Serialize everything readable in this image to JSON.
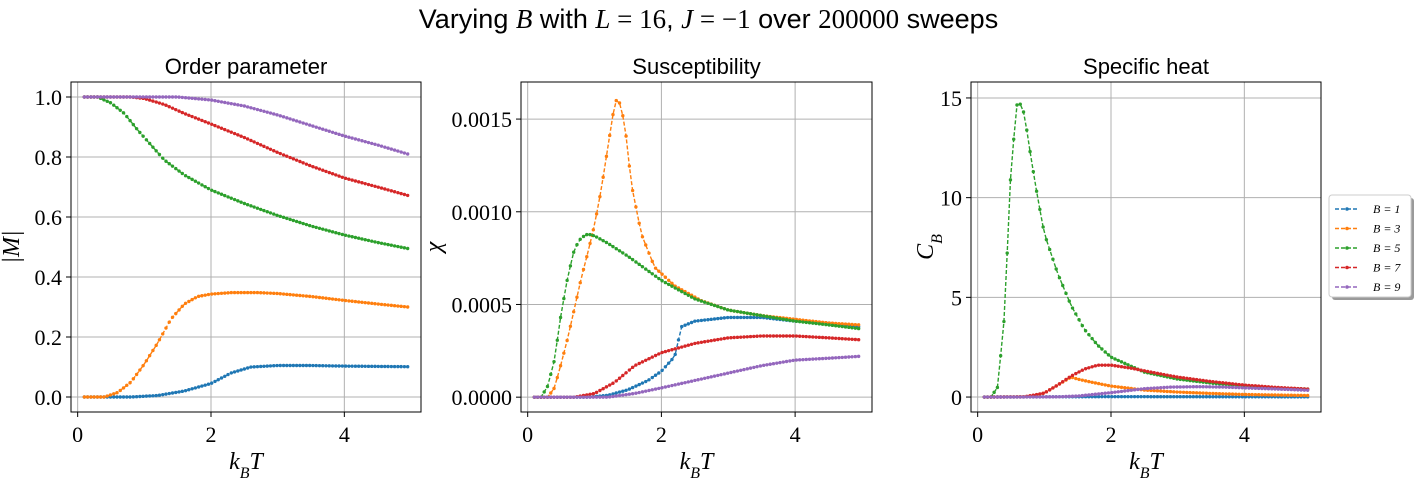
{
  "figure": {
    "suptitle": {
      "p1": "Varying ",
      "m1": "B",
      "p2": " with ",
      "m2": "L",
      "p3": " = ",
      "n1": "16",
      "p4": ", ",
      "m3": "J",
      "p5": " = −",
      "n2": "1",
      "p6": " over ",
      "n3": "200000",
      "p7": " sweeps"
    }
  },
  "colors": {
    "B = 1": "#1f77b4",
    "B = 3": "#ff7f0e",
    "B = 5": "#2ca02c",
    "B = 7": "#d62728",
    "B = 9": "#9467bd",
    "grid": "#b0b0b0"
  },
  "chart_data": [
    {
      "type": "line",
      "title": "Order parameter",
      "xlabel": "k_BT",
      "ylabel": "|M|",
      "xlim": [
        -0.1,
        5.15
      ],
      "ylim": [
        -0.05,
        1.05
      ],
      "xticks": [
        0,
        2,
        4
      ],
      "xtick_labels": [
        "0",
        "2",
        "4"
      ],
      "yticks": [
        0.0,
        0.2,
        0.4,
        0.6,
        0.8,
        1.0
      ],
      "ytick_labels": [
        "0.0",
        "0.2",
        "0.4",
        "0.6",
        "0.8",
        "1.0"
      ],
      "grid": true,
      "x_range": [
        0.1,
        4.95
      ],
      "series": [
        {
          "name": "B = 1",
          "points": [
            [
              0.1,
              0
            ],
            [
              0.8,
              0
            ],
            [
              1.2,
              0.005
            ],
            [
              1.6,
              0.02
            ],
            [
              2.0,
              0.045
            ],
            [
              2.3,
              0.08
            ],
            [
              2.6,
              0.1
            ],
            [
              3.0,
              0.105
            ],
            [
              3.5,
              0.105
            ],
            [
              4.0,
              0.103
            ],
            [
              4.5,
              0.102
            ],
            [
              4.95,
              0.101
            ]
          ]
        },
        {
          "name": "B = 3",
          "points": [
            [
              0.1,
              0
            ],
            [
              0.4,
              0
            ],
            [
              0.6,
              0.015
            ],
            [
              0.8,
              0.05
            ],
            [
              1.0,
              0.11
            ],
            [
              1.2,
              0.18
            ],
            [
              1.4,
              0.26
            ],
            [
              1.6,
              0.31
            ],
            [
              1.8,
              0.335
            ],
            [
              2.0,
              0.343
            ],
            [
              2.3,
              0.348
            ],
            [
              2.7,
              0.348
            ],
            [
              3.0,
              0.345
            ],
            [
              3.5,
              0.335
            ],
            [
              4.0,
              0.322
            ],
            [
              4.5,
              0.31
            ],
            [
              4.95,
              0.3
            ]
          ]
        },
        {
          "name": "B = 5",
          "points": [
            [
              0.1,
              1.0
            ],
            [
              0.3,
              1.0
            ],
            [
              0.5,
              0.98
            ],
            [
              0.7,
              0.945
            ],
            [
              0.9,
              0.89
            ],
            [
              1.1,
              0.84
            ],
            [
              1.3,
              0.79
            ],
            [
              1.6,
              0.74
            ],
            [
              2.0,
              0.69
            ],
            [
              2.5,
              0.645
            ],
            [
              3.0,
              0.605
            ],
            [
              3.5,
              0.57
            ],
            [
              4.0,
              0.54
            ],
            [
              4.5,
              0.515
            ],
            [
              4.95,
              0.495
            ]
          ]
        },
        {
          "name": "B = 7",
          "points": [
            [
              0.1,
              1.0
            ],
            [
              0.8,
              1.0
            ],
            [
              1.0,
              0.995
            ],
            [
              1.3,
              0.975
            ],
            [
              1.6,
              0.945
            ],
            [
              2.0,
              0.91
            ],
            [
              2.5,
              0.865
            ],
            [
              3.0,
              0.815
            ],
            [
              3.5,
              0.77
            ],
            [
              4.0,
              0.73
            ],
            [
              4.5,
              0.7
            ],
            [
              4.95,
              0.672
            ]
          ]
        },
        {
          "name": "B = 9",
          "points": [
            [
              0.1,
              1.0
            ],
            [
              1.5,
              1.0
            ],
            [
              2.0,
              0.99
            ],
            [
              2.5,
              0.97
            ],
            [
              3.0,
              0.94
            ],
            [
              3.5,
              0.905
            ],
            [
              4.0,
              0.87
            ],
            [
              4.5,
              0.84
            ],
            [
              4.95,
              0.81
            ]
          ]
        }
      ]
    },
    {
      "type": "line",
      "title": "Susceptibility",
      "xlabel": "k_BT",
      "ylabel": "χ",
      "xlim": [
        -0.1,
        5.15
      ],
      "ylim": [
        -8e-05,
        0.0017
      ],
      "xticks": [
        0,
        2,
        4
      ],
      "xtick_labels": [
        "0",
        "2",
        "4"
      ],
      "yticks": [
        0.0,
        0.0005,
        0.001,
        0.0015
      ],
      "ytick_labels": [
        "0.0000",
        "0.0005",
        "0.0010",
        "0.0015"
      ],
      "grid": true,
      "x_range": [
        0.1,
        4.95
      ],
      "series": [
        {
          "name": "B = 1",
          "points": [
            [
              0.1,
              0
            ],
            [
              0.9,
              0
            ],
            [
              1.2,
              1e-05
            ],
            [
              1.5,
              4e-05
            ],
            [
              1.8,
              9e-05
            ],
            [
              2.0,
              0.00014
            ],
            [
              2.2,
              0.00022
            ],
            [
              2.3,
              0.00038
            ],
            [
              2.5,
              0.00041
            ],
            [
              3.0,
              0.00043
            ],
            [
              3.5,
              0.00043
            ],
            [
              4.0,
              0.00041
            ],
            [
              4.5,
              0.0004
            ],
            [
              4.95,
              0.00038
            ]
          ]
        },
        {
          "name": "B = 3",
          "points": [
            [
              0.1,
              0
            ],
            [
              0.3,
              0
            ],
            [
              0.4,
              5e-05
            ],
            [
              0.5,
              0.00018
            ],
            [
              0.6,
              0.00032
            ],
            [
              0.7,
              0.00048
            ],
            [
              0.8,
              0.00064
            ],
            [
              0.9,
              0.00078
            ],
            [
              1.0,
              0.00093
            ],
            [
              1.1,
              0.00112
            ],
            [
              1.2,
              0.00135
            ],
            [
              1.3,
              0.00158
            ],
            [
              1.35,
              0.00162
            ],
            [
              1.45,
              0.00148
            ],
            [
              1.55,
              0.00115
            ],
            [
              1.7,
              0.00088
            ],
            [
              1.9,
              0.0007
            ],
            [
              2.2,
              0.0006
            ],
            [
              2.6,
              0.00052
            ],
            [
              3.0,
              0.00047
            ],
            [
              3.5,
              0.00044
            ],
            [
              4.0,
              0.00042
            ],
            [
              4.5,
              0.0004
            ],
            [
              4.95,
              0.00039
            ]
          ]
        },
        {
          "name": "B = 5",
          "points": [
            [
              0.1,
              0
            ],
            [
              0.2,
              0
            ],
            [
              0.3,
              6e-05
            ],
            [
              0.4,
              0.0002
            ],
            [
              0.5,
              0.00045
            ],
            [
              0.6,
              0.00065
            ],
            [
              0.7,
              0.0008
            ],
            [
              0.8,
              0.00086
            ],
            [
              0.9,
              0.00088
            ],
            [
              1.0,
              0.00087
            ],
            [
              1.2,
              0.00083
            ],
            [
              1.5,
              0.00076
            ],
            [
              2.0,
              0.00063
            ],
            [
              2.5,
              0.00053
            ],
            [
              3.0,
              0.00047
            ],
            [
              3.5,
              0.00044
            ],
            [
              4.0,
              0.00041
            ],
            [
              4.5,
              0.00039
            ],
            [
              4.95,
              0.00037
            ]
          ]
        },
        {
          "name": "B = 7",
          "points": [
            [
              0.1,
              0
            ],
            [
              0.7,
              0
            ],
            [
              1.0,
              2e-05
            ],
            [
              1.3,
              8e-05
            ],
            [
              1.6,
              0.00017
            ],
            [
              2.0,
              0.00024
            ],
            [
              2.5,
              0.00029
            ],
            [
              3.0,
              0.00032
            ],
            [
              3.5,
              0.00033
            ],
            [
              4.0,
              0.00033
            ],
            [
              4.5,
              0.00032
            ],
            [
              4.95,
              0.00031
            ]
          ]
        },
        {
          "name": "B = 9",
          "points": [
            [
              0.1,
              0
            ],
            [
              1.2,
              0
            ],
            [
              1.6,
              2e-05
            ],
            [
              2.0,
              5e-05
            ],
            [
              2.5,
              9e-05
            ],
            [
              3.0,
              0.00013
            ],
            [
              3.5,
              0.00017
            ],
            [
              4.0,
              0.0002
            ],
            [
              4.5,
              0.00021
            ],
            [
              4.95,
              0.00022
            ]
          ]
        }
      ]
    },
    {
      "type": "line",
      "title": "Specific heat",
      "xlabel": "k_BT",
      "ylabel": "C_B",
      "xlim": [
        -0.1,
        5.15
      ],
      "ylim": [
        -0.75,
        15.8
      ],
      "xticks": [
        0,
        2,
        4
      ],
      "xtick_labels": [
        "0",
        "2",
        "4"
      ],
      "yticks": [
        0,
        5,
        10,
        15
      ],
      "ytick_labels": [
        "0",
        "5",
        "10",
        "15"
      ],
      "grid": true,
      "x_range": [
        0.1,
        4.95
      ],
      "series": [
        {
          "name": "B = 1",
          "points": [
            [
              0.1,
              0
            ],
            [
              2.0,
              0.02
            ],
            [
              4.95,
              0.01
            ]
          ]
        },
        {
          "name": "B = 3",
          "points": [
            [
              0.1,
              0
            ],
            [
              0.8,
              0.02
            ],
            [
              1.0,
              0.2
            ],
            [
              1.2,
              0.6
            ],
            [
              1.4,
              1.0
            ],
            [
              1.5,
              0.9
            ],
            [
              1.7,
              0.75
            ],
            [
              2.0,
              0.55
            ],
            [
              2.5,
              0.35
            ],
            [
              3.0,
              0.25
            ],
            [
              3.5,
              0.18
            ],
            [
              4.0,
              0.13
            ],
            [
              4.5,
              0.1
            ],
            [
              4.95,
              0.08
            ]
          ]
        },
        {
          "name": "B = 5",
          "points": [
            [
              0.1,
              0
            ],
            [
              0.2,
              0
            ],
            [
              0.3,
              0.5
            ],
            [
              0.4,
              4.0
            ],
            [
              0.5,
              11.5
            ],
            [
              0.6,
              15.0
            ],
            [
              0.7,
              14.2
            ],
            [
              0.8,
              12.0
            ],
            [
              0.9,
              10.0
            ],
            [
              1.0,
              8.2
            ],
            [
              1.2,
              6.2
            ],
            [
              1.4,
              4.6
            ],
            [
              1.6,
              3.4
            ],
            [
              1.8,
              2.6
            ],
            [
              2.0,
              2.0
            ],
            [
              2.5,
              1.25
            ],
            [
              3.0,
              0.9
            ],
            [
              3.5,
              0.7
            ],
            [
              4.0,
              0.55
            ],
            [
              4.5,
              0.45
            ],
            [
              4.95,
              0.4
            ]
          ]
        },
        {
          "name": "B = 7",
          "points": [
            [
              0.1,
              0
            ],
            [
              0.7,
              0.01
            ],
            [
              1.0,
              0.2
            ],
            [
              1.2,
              0.6
            ],
            [
              1.4,
              1.05
            ],
            [
              1.6,
              1.4
            ],
            [
              1.8,
              1.6
            ],
            [
              2.0,
              1.6
            ],
            [
              2.3,
              1.45
            ],
            [
              2.6,
              1.25
            ],
            [
              3.0,
              1.0
            ],
            [
              3.5,
              0.78
            ],
            [
              4.0,
              0.6
            ],
            [
              4.5,
              0.48
            ],
            [
              4.95,
              0.4
            ]
          ]
        },
        {
          "name": "B = 9",
          "points": [
            [
              0.1,
              0
            ],
            [
              1.2,
              0.01
            ],
            [
              1.5,
              0.05
            ],
            [
              2.0,
              0.22
            ],
            [
              2.5,
              0.42
            ],
            [
              2.9,
              0.5
            ],
            [
              3.3,
              0.52
            ],
            [
              3.7,
              0.5
            ],
            [
              4.0,
              0.46
            ],
            [
              4.5,
              0.4
            ],
            [
              4.95,
              0.34
            ]
          ]
        }
      ]
    }
  ],
  "legend": {
    "entries": [
      {
        "label": "B = 1"
      },
      {
        "label": "B = 3"
      },
      {
        "label": "B = 5"
      },
      {
        "label": "B = 7"
      },
      {
        "label": "B = 9"
      }
    ]
  }
}
